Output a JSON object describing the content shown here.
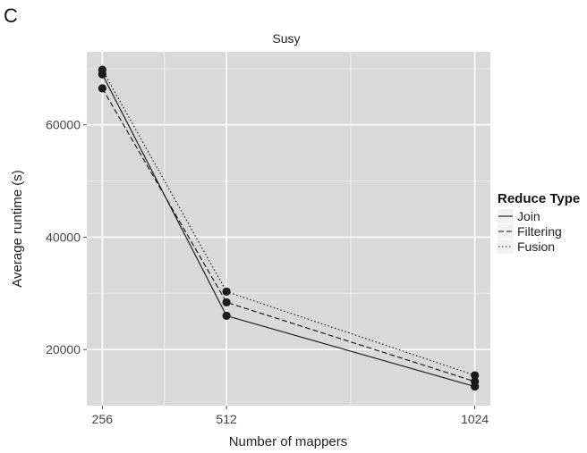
{
  "panel_label": "C",
  "chart_data": {
    "type": "line",
    "title": "Susy",
    "xlabel": "Number of mappers",
    "ylabel": "Average runtime (s)",
    "x": [
      256,
      512,
      1024
    ],
    "x_tick_labels": [
      "256",
      "512",
      "1024"
    ],
    "y_ticks": [
      20000,
      40000,
      60000
    ],
    "y_tick_labels": [
      "20000",
      "40000",
      "60000"
    ],
    "xlim": [
      224,
      1056
    ],
    "ylim": [
      10000,
      73000
    ],
    "grid": true,
    "legend": {
      "title": "Reduce Type",
      "placement": "right"
    },
    "series": [
      {
        "name": "Join",
        "line_style": "solid",
        "values": [
          69000,
          26000,
          13400
        ]
      },
      {
        "name": "Filtering",
        "line_style": "dashed",
        "values": [
          66500,
          28400,
          14300
        ]
      },
      {
        "name": "Fusion",
        "line_style": "dotted",
        "values": [
          69800,
          30300,
          15400
        ]
      }
    ],
    "colors": {
      "panel_bg": "#d9d9d9",
      "grid_major": "#ffffff",
      "grid_minor": "#ececec",
      "line": "#111111",
      "point": "#1a1a1a"
    }
  }
}
